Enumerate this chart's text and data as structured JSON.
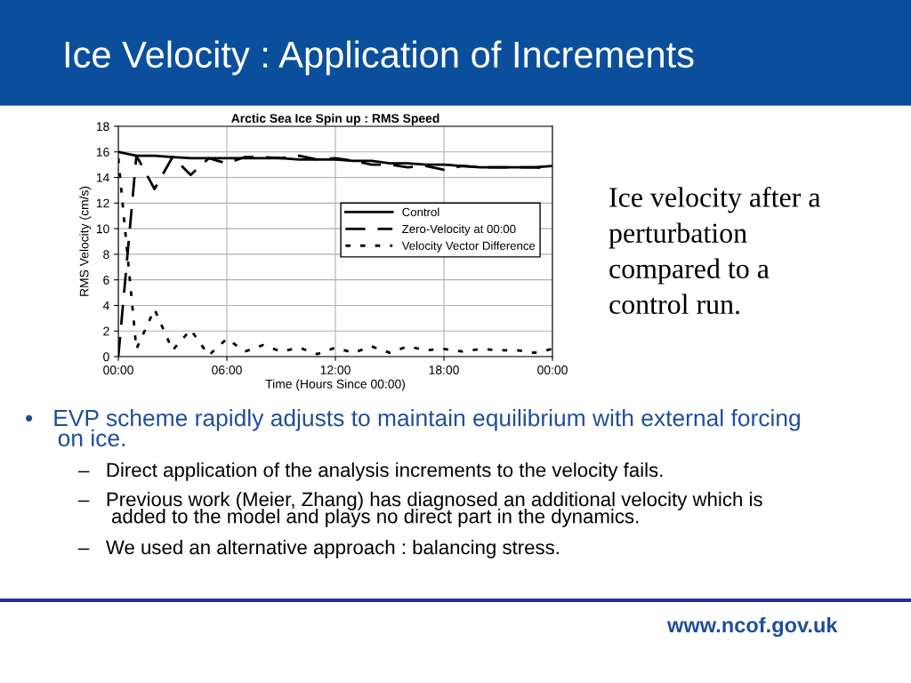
{
  "chart_data": {
    "type": "line",
    "title": "Arctic Sea Ice Spin up : RMS Speed",
    "xlabel": "Time (Hours Since 00:00)",
    "ylabel": "RMS Velocity (cm/s)",
    "x": [
      0,
      1,
      2,
      3,
      4,
      5,
      6,
      7,
      8,
      9,
      10,
      11,
      12,
      13,
      14,
      15,
      16,
      17,
      18,
      19,
      20,
      21,
      22,
      23,
      24
    ],
    "series": [
      {
        "name": "Control",
        "color": "#000000",
        "line_style": "solid",
        "values": [
          16,
          15.7,
          15.7,
          15.6,
          15.5,
          15.5,
          15.5,
          15.5,
          15.5,
          15.5,
          15.4,
          15.4,
          15.4,
          15.3,
          15.3,
          15.1,
          15.1,
          15.0,
          15.0,
          14.9,
          14.8,
          14.8,
          14.8,
          14.8,
          14.9
        ]
      },
      {
        "name": "Zero-Velocity at 00:00",
        "color": "#000000",
        "line_style": "dashed",
        "values": [
          0,
          15.7,
          13.1,
          15.6,
          14.2,
          15.5,
          15.1,
          15.6,
          15.6,
          15.5,
          15.7,
          15.4,
          15.5,
          15.3,
          15.0,
          15.0,
          14.8,
          14.9,
          14.6,
          14.9,
          14.8,
          14.8,
          14.8,
          14.8,
          14.7
        ]
      },
      {
        "name": "Velocity Vector Difference",
        "color": "#000000",
        "line_style": "dotted",
        "values": [
          15.5,
          0.6,
          3.7,
          0.5,
          2.1,
          0.1,
          1.4,
          0.4,
          0.9,
          0.4,
          0.7,
          0.2,
          0.7,
          0.3,
          0.8,
          0.3,
          0.8,
          0.5,
          0.6,
          0.4,
          0.6,
          0.5,
          0.5,
          0.3,
          0.6
        ]
      }
    ],
    "xlim": [
      0,
      24
    ],
    "xticks": [
      {
        "value": 0,
        "label": "00:00"
      },
      {
        "value": 6,
        "label": "06:00"
      },
      {
        "value": 12,
        "label": "12:00"
      },
      {
        "value": 18,
        "label": "18:00"
      },
      {
        "value": 24,
        "label": "00:00"
      }
    ],
    "ylim": [
      0,
      18
    ],
    "yticks": [
      0,
      2,
      4,
      6,
      8,
      10,
      12,
      14,
      16,
      18
    ],
    "grid": true,
    "legend": "center right",
    "marker": "none",
    "annotations": [
      "Ice Velocity : Application of Increments",
      "Ice velocity after a\nperturbation\ncompared to a\ncontrol run.",
      "•   EVP scheme rapidly adjusts to maintain equilibrium with external forcing\n     on ice.",
      "–   Direct application of the analysis increments to the velocity fails.",
      "–   Previous work (Meier, Zhang) has diagnosed an additional velocity which is\n      added to the model and plays no direct part in the dynamics.",
      "–   We used an alternative approach : balancing stress.",
      "www.ncof.gov.uk"
    ]
  }
}
